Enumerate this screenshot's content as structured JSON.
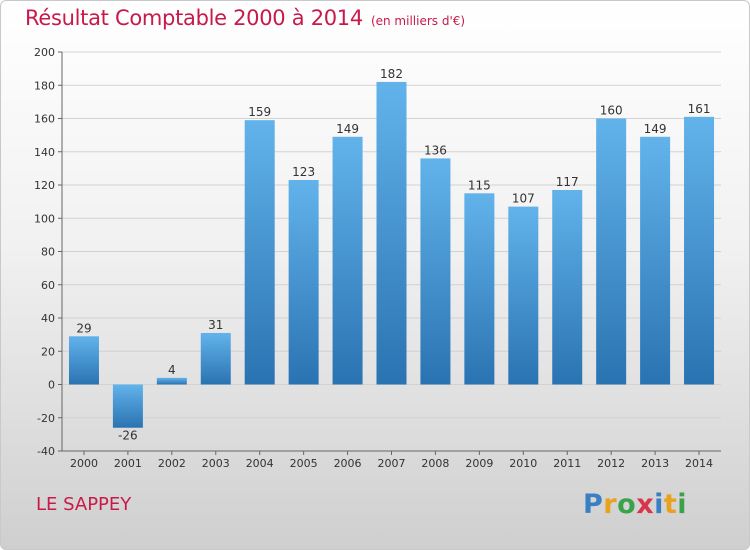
{
  "title": "Résultat Comptable 2000 à 2014",
  "unit_label": "(en milliers d'€)",
  "location": "LE SAPPEY",
  "brand": {
    "text": "Proxiti",
    "letter_colors": [
      "#3a7fc1",
      "#e8a21c",
      "#3aa34a",
      "#d9344a",
      "#3a7fc1",
      "#e8a21c",
      "#3aa34a"
    ]
  },
  "colors": {
    "title": "#c8194a",
    "bar_top": "#62b3eb",
    "bar_bottom": "#2a73b2",
    "grid": "#d2d2d2",
    "axis": "#666666"
  },
  "chart_data": {
    "type": "bar",
    "title": "Résultat Comptable 2000 à 2014",
    "xlabel": "",
    "ylabel": "",
    "categories": [
      "2000",
      "2001",
      "2002",
      "2003",
      "2004",
      "2005",
      "2006",
      "2007",
      "2008",
      "2009",
      "2010",
      "2011",
      "2012",
      "2013",
      "2014"
    ],
    "values": [
      29,
      -26,
      4,
      31,
      159,
      123,
      149,
      182,
      136,
      115,
      107,
      117,
      160,
      149,
      161
    ],
    "ylim": [
      -40,
      200
    ],
    "yticks": [
      -40,
      -20,
      0,
      20,
      40,
      60,
      80,
      100,
      120,
      140,
      160,
      180,
      200
    ],
    "grid": true
  }
}
